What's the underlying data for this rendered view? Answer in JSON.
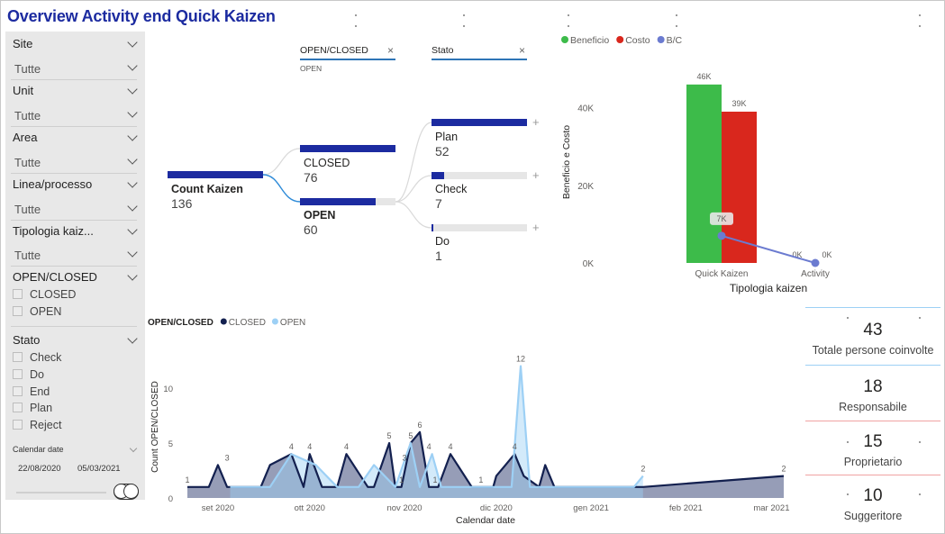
{
  "page_title": "Overview Activity end Quick Kaizen",
  "filters": {
    "slicers": [
      {
        "label": "Site",
        "value": "Tutte"
      },
      {
        "label": "Unit",
        "value": "Tutte"
      },
      {
        "label": "Area",
        "value": "Tutte"
      },
      {
        "label": "Linea/processo",
        "value": "Tutte"
      },
      {
        "label": "Tipologia kaiz...",
        "value": "Tutte"
      }
    ],
    "open_closed": {
      "label": "OPEN/CLOSED",
      "options": [
        "CLOSED",
        "OPEN"
      ]
    },
    "stato": {
      "label": "Stato",
      "options": [
        "Check",
        "Do",
        "End",
        "Plan",
        "Reject"
      ]
    },
    "calendar": {
      "label": "Calendar date",
      "start": "22/08/2020",
      "end": "05/03/2021"
    }
  },
  "decomp": {
    "filter1": {
      "label": "OPEN/CLOSED",
      "value": "OPEN"
    },
    "filter2": {
      "label": "Stato"
    },
    "root": {
      "label": "Count Kaizen",
      "value": "136",
      "fraction": 1.0
    },
    "level1": [
      {
        "label": "CLOSED",
        "value": "76",
        "fraction": 1.0
      },
      {
        "label": "OPEN",
        "value": "60",
        "fraction": 0.79
      }
    ],
    "level2": [
      {
        "label": "Plan",
        "value": "52",
        "fraction": 1.0
      },
      {
        "label": "Check",
        "value": "7",
        "fraction": 0.135
      },
      {
        "label": "Do",
        "value": "1",
        "fraction": 0.02
      }
    ],
    "plus": "+"
  },
  "chart_data": [
    {
      "type": "bar",
      "legend": [
        "Beneficio",
        "Costo",
        "B/C"
      ],
      "legend_placement": "top-left",
      "categories": [
        "Quick Kaizen",
        "Activity"
      ],
      "series": [
        {
          "name": "Beneficio",
          "values": [
            46000,
            0
          ],
          "color": "#3dbb4a"
        },
        {
          "name": "Costo",
          "values": [
            39000,
            0
          ],
          "color": "#d9271d"
        },
        {
          "name": "B/C",
          "values": [
            7000,
            0
          ],
          "color": "#6b7bd0",
          "kind": "line"
        }
      ],
      "data_labels": {
        "Beneficio": [
          "46K",
          "0K"
        ],
        "Costo": [
          "39K",
          "0K"
        ],
        "B/C": [
          "7K",
          ""
        ]
      },
      "ylabel": "Beneficio e Costo",
      "xlabel": "Tipologia kaizen",
      "yticks": [
        "0K",
        "20K",
        "40K"
      ],
      "ylim": [
        0,
        52000
      ]
    },
    {
      "type": "area",
      "legend_title": "OPEN/CLOSED",
      "legend": [
        "CLOSED",
        "OPEN"
      ],
      "xlabel": "Calendar date",
      "ylabel": "Count OPEN/CLOSED",
      "xticks": [
        "set 2020",
        "ott 2020",
        "nov 2020",
        "dic 2020",
        "gen 2021",
        "feb 2021",
        "mar 2021"
      ],
      "yticks": [
        "0",
        "5",
        "10"
      ],
      "ylim": [
        0,
        12
      ],
      "series": [
        {
          "name": "CLOSED",
          "color": "#13204f",
          "x": [
            "2020-08-22",
            "2020-08-29",
            "2020-09-01",
            "2020-09-04",
            "2020-09-08",
            "2020-09-11",
            "2020-09-15",
            "2020-09-18",
            "2020-09-25",
            "2020-09-29",
            "2020-10-01",
            "2020-10-05",
            "2020-10-10",
            "2020-10-13",
            "2020-10-20",
            "2020-10-22",
            "2020-10-27",
            "2020-10-29",
            "2020-10-31",
            "2020-11-03",
            "2020-11-06",
            "2020-11-09",
            "2020-11-12",
            "2020-11-16",
            "2020-11-23",
            "2020-11-26",
            "2020-11-30",
            "2020-12-01",
            "2020-12-04",
            "2020-12-07",
            "2020-12-10",
            "2020-12-15",
            "2020-12-17",
            "2020-12-20",
            "2021-01-15",
            "2021-01-18",
            "2021-03-05"
          ],
          "values": [
            1,
            1,
            3,
            1,
            1,
            1,
            1,
            3,
            4,
            1,
            4,
            1,
            1,
            4,
            1,
            1,
            5,
            1,
            1,
            5,
            6,
            1,
            1,
            4,
            1,
            1,
            1,
            2,
            3,
            4,
            2,
            1,
            3,
            1,
            1,
            1,
            2
          ]
        },
        {
          "name": "OPEN",
          "color": "#9dd0f5",
          "x": [
            "2020-09-05",
            "2020-09-18",
            "2020-09-25",
            "2020-10-03",
            "2020-10-10",
            "2020-10-13",
            "2020-10-17",
            "2020-10-22",
            "2020-10-29",
            "2020-11-03",
            "2020-11-06",
            "2020-11-10",
            "2020-11-13",
            "2020-11-16",
            "2020-11-21",
            "2020-12-01",
            "2020-12-06",
            "2020-12-09",
            "2020-12-12",
            "2020-12-17",
            "2020-12-24",
            "2021-01-15",
            "2021-01-18"
          ],
          "values": [
            1,
            1,
            4,
            3,
            1,
            1,
            1,
            3,
            1,
            5,
            1,
            4,
            1,
            1,
            1,
            1,
            1,
            12,
            1,
            1,
            1,
            1,
            2
          ]
        }
      ],
      "point_labels": [
        {
          "text": "1",
          "x": "2020-08-22",
          "y": 1
        },
        {
          "text": "3",
          "x": "2020-09-04",
          "y": 3
        },
        {
          "text": "4",
          "x": "2020-09-25",
          "y": 4
        },
        {
          "text": "4",
          "x": "2020-10-01",
          "y": 4
        },
        {
          "text": "4",
          "x": "2020-10-13",
          "y": 4
        },
        {
          "text": "5",
          "x": "2020-10-27",
          "y": 5
        },
        {
          "text": "1",
          "x": "2020-10-31",
          "y": 1
        },
        {
          "text": "5",
          "x": "2020-11-03",
          "y": 5
        },
        {
          "text": "6",
          "x": "2020-11-06",
          "y": 6
        },
        {
          "text": "3",
          "x": "2020-11-01",
          "y": 3
        },
        {
          "text": "4",
          "x": "2020-11-09",
          "y": 4
        },
        {
          "text": "4",
          "x": "2020-11-16",
          "y": 4
        },
        {
          "text": "1",
          "x": "2020-11-11",
          "y": 1
        },
        {
          "text": "1",
          "x": "2020-11-26",
          "y": 1
        },
        {
          "text": "12",
          "x": "2020-12-09",
          "y": 12
        },
        {
          "text": "4",
          "x": "2020-12-07",
          "y": 4
        },
        {
          "text": "2",
          "x": "2021-01-18",
          "y": 2
        },
        {
          "text": "2",
          "x": "2021-03-05",
          "y": 2
        }
      ]
    }
  ],
  "kpis": [
    {
      "value": "43",
      "label": "Totale persone coinvolte"
    },
    {
      "value": "18",
      "label": "Responsabile"
    },
    {
      "value": "15",
      "label": "Proprietario"
    },
    {
      "value": "10",
      "label": "Suggeritore"
    }
  ]
}
